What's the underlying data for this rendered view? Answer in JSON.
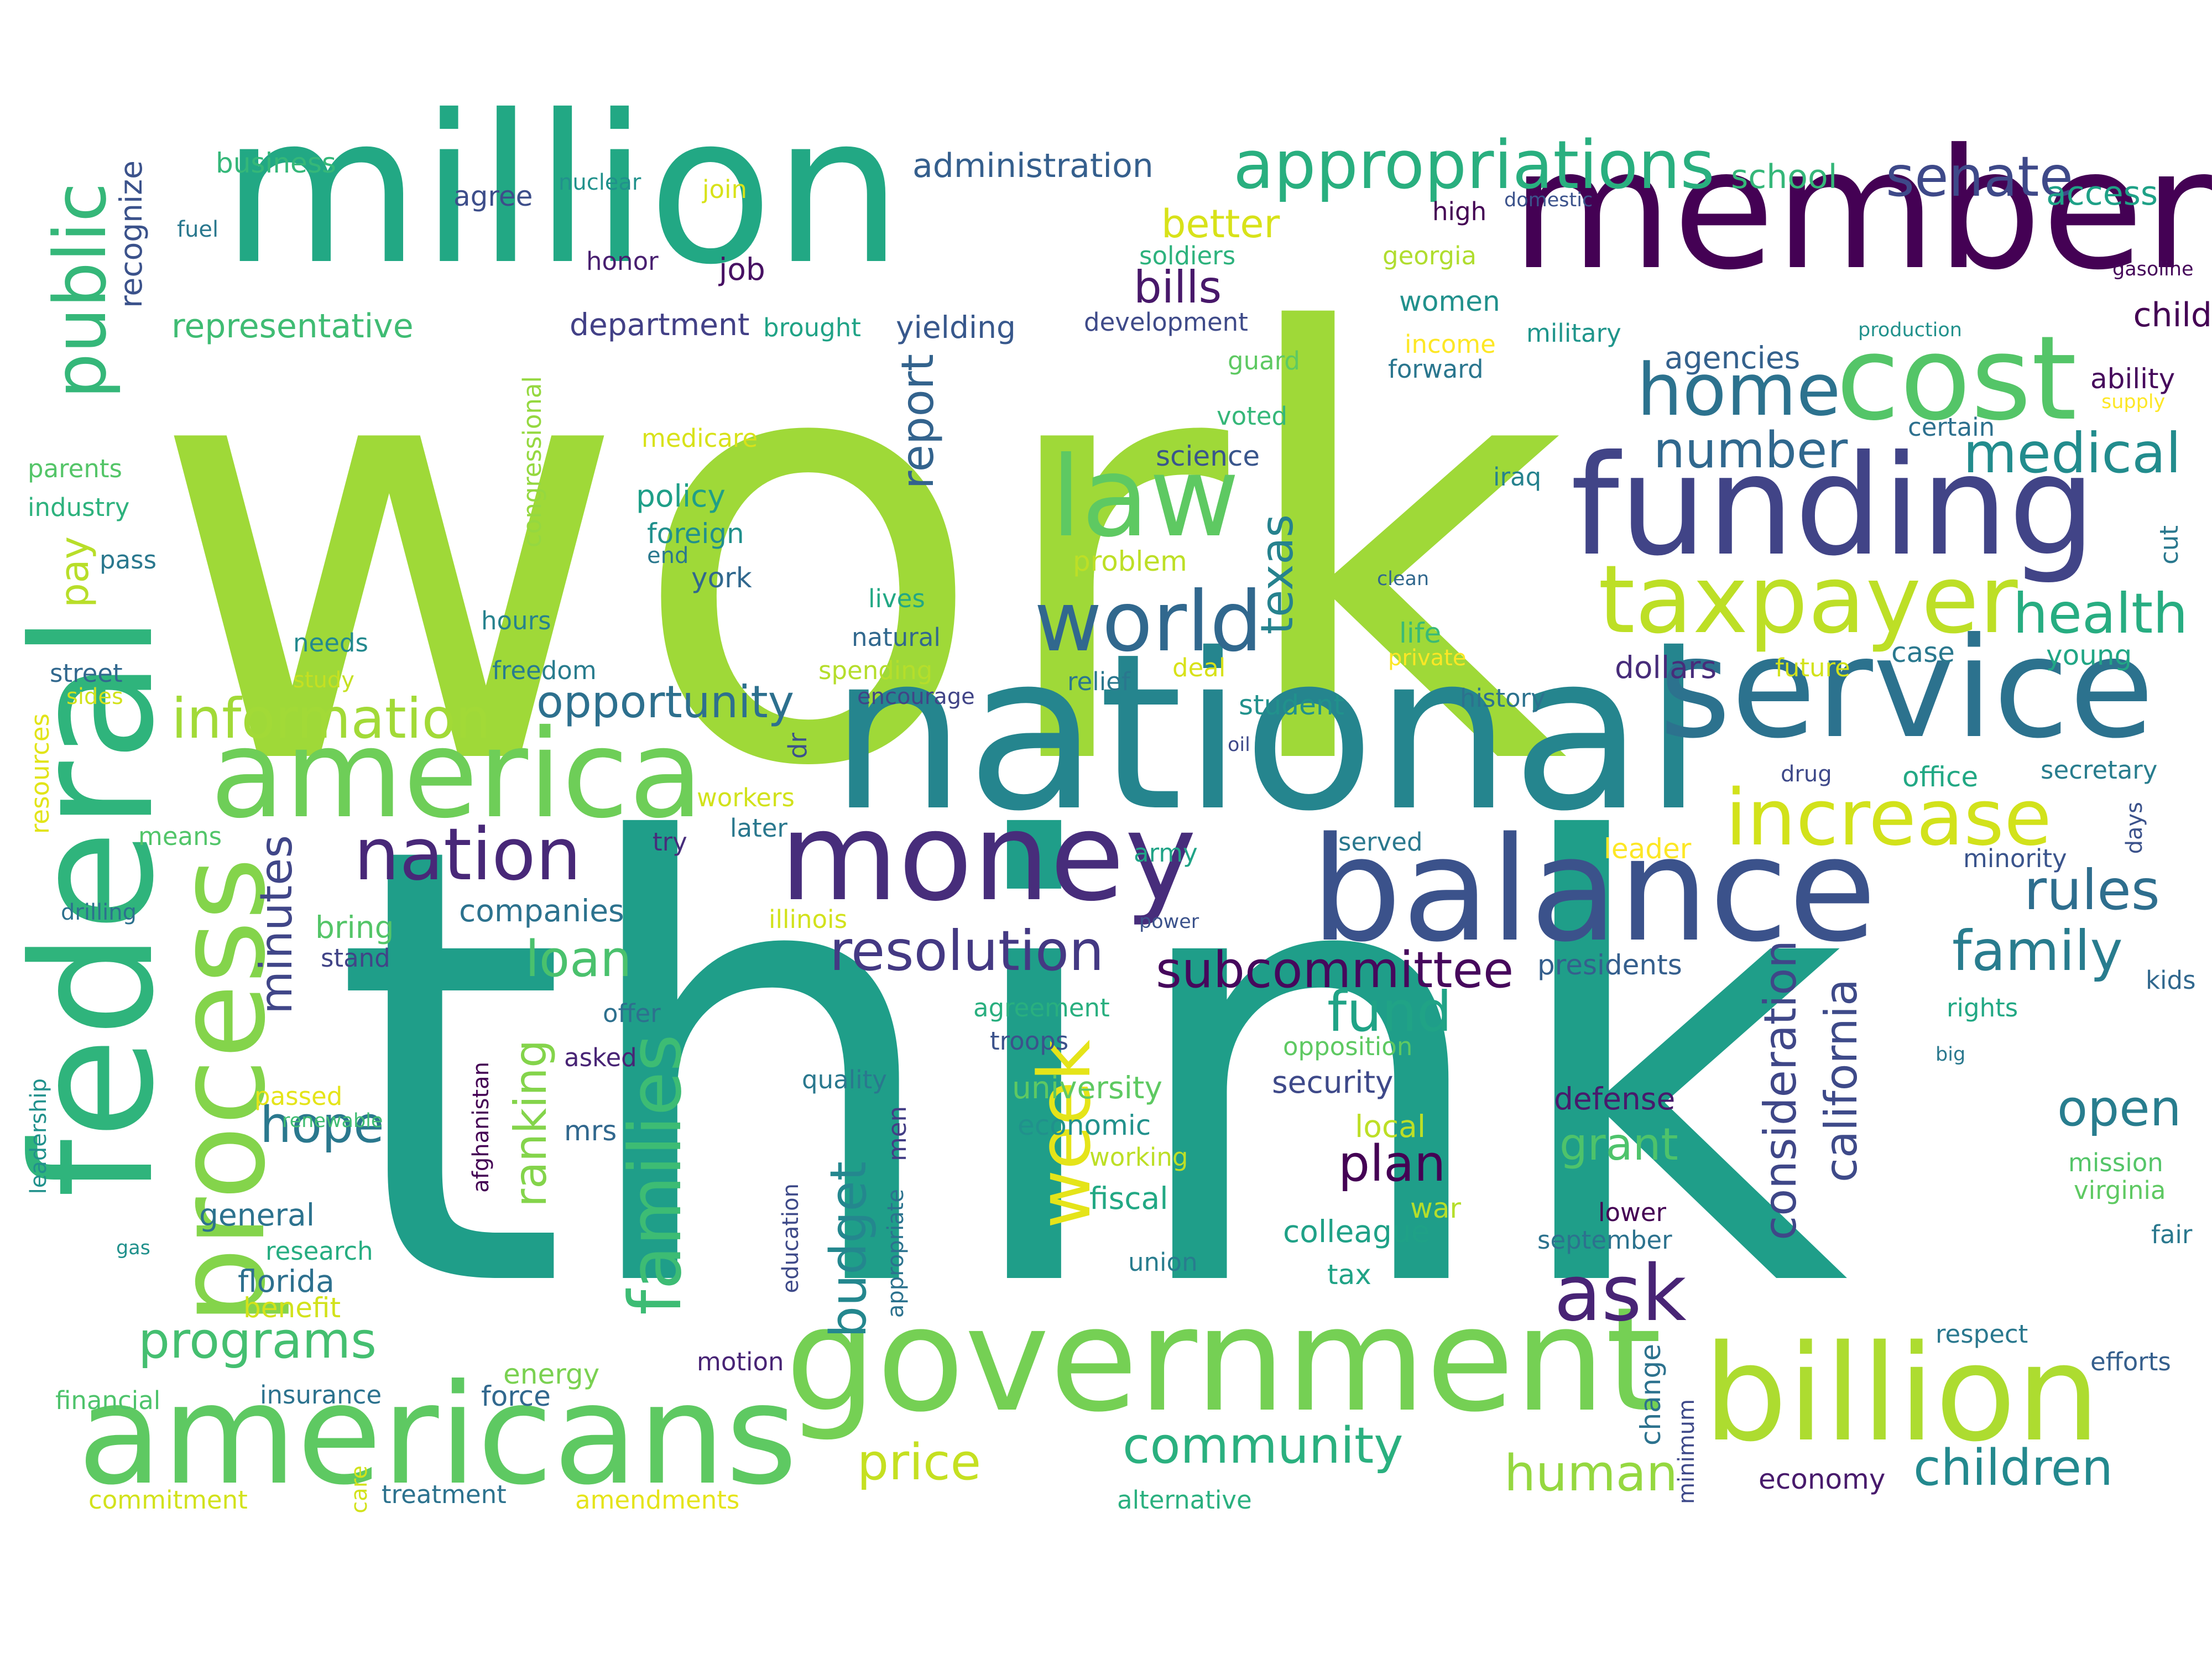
{
  "palette": [
    "#440154",
    "#472d7b",
    "#3b528b",
    "#2c728e",
    "#21918c",
    "#28ae80",
    "#5ec962",
    "#addc30",
    "#fde725"
  ],
  "words": [
    {
      "text": "work",
      "color": "#9fd938"
    },
    {
      "text": "think",
      "color": "#1f9e89"
    },
    {
      "text": "national",
      "color": "#25858e"
    },
    {
      "text": "million",
      "color": "#22a884"
    },
    {
      "text": "member",
      "color": "#440154"
    },
    {
      "text": "federal",
      "color": "#2fb47c"
    },
    {
      "text": "service",
      "color": "#2c728e"
    },
    {
      "text": "balance",
      "color": "#3b528b"
    },
    {
      "text": "government",
      "color": "#75d054"
    },
    {
      "text": "americans",
      "color": "#5ec962"
    },
    {
      "text": "funding",
      "color": "#414487"
    },
    {
      "text": "billion",
      "color": "#addc30"
    },
    {
      "text": "money",
      "color": "#472d7b"
    },
    {
      "text": "america",
      "color": "#6ece58"
    },
    {
      "text": "cost",
      "color": "#54c568"
    },
    {
      "text": "process",
      "color": "#84d44b"
    },
    {
      "text": "law",
      "color": "#5ec962"
    },
    {
      "text": "world",
      "color": "#31688e"
    },
    {
      "text": "taxpayer",
      "color": "#bddf26"
    },
    {
      "text": "appropriations",
      "color": "#29af7f"
    },
    {
      "text": "increase",
      "color": "#d2e21b"
    },
    {
      "text": "nation",
      "color": "#482878"
    },
    {
      "text": "public",
      "color": "#35b779"
    },
    {
      "text": "families",
      "color": "#3dbc74"
    },
    {
      "text": "home",
      "color": "#2c728e"
    },
    {
      "text": "senate",
      "color": "#3e4989"
    },
    {
      "text": "week",
      "color": "#e5e419"
    },
    {
      "text": "ask",
      "color": "#482475"
    },
    {
      "text": "resolution",
      "color": "#443983"
    },
    {
      "text": "subcommittee",
      "color": "#46085c"
    },
    {
      "text": "health",
      "color": "#27ad81"
    },
    {
      "text": "medical",
      "color": "#228c8d"
    },
    {
      "text": "number",
      "color": "#30688e"
    },
    {
      "text": "rules",
      "color": "#2e6e8e"
    },
    {
      "text": "family",
      "color": "#287c8e"
    },
    {
      "text": "information",
      "color": "#a2da37"
    },
    {
      "text": "opportunity",
      "color": "#2d708e"
    },
    {
      "text": "programs",
      "color": "#44bf70"
    },
    {
      "text": "community",
      "color": "#2ab07f"
    },
    {
      "text": "children",
      "color": "#23898e"
    },
    {
      "text": "human",
      "color": "#95d840"
    },
    {
      "text": "price",
      "color": "#c5e021"
    },
    {
      "text": "plan",
      "color": "#440154"
    },
    {
      "text": "fund",
      "color": "#20a386"
    },
    {
      "text": "loan",
      "color": "#4ac16d"
    },
    {
      "text": "hope",
      "color": "#2a788e"
    },
    {
      "text": "budget",
      "color": "#24878e"
    },
    {
      "text": "california",
      "color": "#3e4a89"
    },
    {
      "text": "consideration",
      "color": "#3f4788"
    },
    {
      "text": "ranking",
      "color": "#84d44b"
    },
    {
      "text": "minutes",
      "color": "#404688"
    },
    {
      "text": "report",
      "color": "#33638d"
    },
    {
      "text": "texas",
      "color": "#26828e"
    },
    {
      "text": "bills",
      "color": "#48186a"
    },
    {
      "text": "better",
      "color": "#d8e219"
    },
    {
      "text": "open",
      "color": "#287d8e"
    },
    {
      "text": "grant",
      "color": "#4ec36b"
    },
    {
      "text": "pay",
      "color": "#b8de29"
    },
    {
      "text": "representative",
      "color": "#3fbc73"
    },
    {
      "text": "business",
      "color": "#35b779"
    },
    {
      "text": "administration",
      "color": "#355f8d"
    },
    {
      "text": "school",
      "color": "#35b779"
    },
    {
      "text": "access",
      "color": "#1fa187"
    },
    {
      "text": "child",
      "color": "#440154"
    },
    {
      "text": "ability",
      "color": "#46085c"
    },
    {
      "text": "gasoline",
      "color": "#46075a"
    },
    {
      "text": "supply",
      "color": "#fde725"
    },
    {
      "text": "production",
      "color": "#21918c"
    },
    {
      "text": "certain",
      "color": "#2d708e"
    },
    {
      "text": "agencies",
      "color": "#34618d"
    },
    {
      "text": "forward",
      "color": "#2a768e"
    },
    {
      "text": "military",
      "color": "#1f958b"
    },
    {
      "text": "income",
      "color": "#fde725"
    },
    {
      "text": "women",
      "color": "#21918c"
    },
    {
      "text": "georgia",
      "color": "#b0dd2f"
    },
    {
      "text": "high",
      "color": "#440154"
    },
    {
      "text": "domestic",
      "color": "#3b528b"
    },
    {
      "text": "soldiers",
      "color": "#2db27d"
    },
    {
      "text": "development",
      "color": "#3e4a89"
    },
    {
      "text": "guard",
      "color": "#5ec962"
    },
    {
      "text": "voted",
      "color": "#35b779"
    },
    {
      "text": "yielding",
      "color": "#38588c"
    },
    {
      "text": "department",
      "color": "#424086"
    },
    {
      "text": "brought",
      "color": "#20a386"
    },
    {
      "text": "job",
      "color": "#471063"
    },
    {
      "text": "honor",
      "color": "#481f70"
    },
    {
      "text": "join",
      "color": "#d8e219"
    },
    {
      "text": "nuclear",
      "color": "#21918c"
    },
    {
      "text": "agree",
      "color": "#3d4e8a"
    },
    {
      "text": "recognize",
      "color": "#3b528b"
    },
    {
      "text": "fuel",
      "color": "#2a788e"
    },
    {
      "text": "parents",
      "color": "#54c568"
    },
    {
      "text": "industry",
      "color": "#2db27d"
    },
    {
      "text": "pass",
      "color": "#2a788e"
    },
    {
      "text": "street",
      "color": "#31688e"
    },
    {
      "text": "sides",
      "color": "#d2e21b"
    },
    {
      "text": "resources",
      "color": "#e2e418"
    },
    {
      "text": "means",
      "color": "#52c569"
    },
    {
      "text": "drilling",
      "color": "#2c718e"
    },
    {
      "text": "congressional",
      "color": "#95d840"
    },
    {
      "text": "medicare",
      "color": "#d8e219"
    },
    {
      "text": "policy",
      "color": "#1f9f88"
    },
    {
      "text": "foreign",
      "color": "#21908d"
    },
    {
      "text": "end",
      "color": "#2a788e"
    },
    {
      "text": "york",
      "color": "#31688e"
    },
    {
      "text": "hours",
      "color": "#26828e"
    },
    {
      "text": "needs",
      "color": "#23898e"
    },
    {
      "text": "study",
      "color": "#c5e021"
    },
    {
      "text": "freedom",
      "color": "#287c8e"
    },
    {
      "text": "lives",
      "color": "#22a884"
    },
    {
      "text": "natural",
      "color": "#31688e"
    },
    {
      "text": "spending",
      "color": "#b5de2b"
    },
    {
      "text": "encourage",
      "color": "#414487"
    },
    {
      "text": "relief",
      "color": "#2a778e"
    },
    {
      "text": "deal",
      "color": "#d8e219"
    },
    {
      "text": "problem",
      "color": "#bddf26"
    },
    {
      "text": "science",
      "color": "#39568c"
    },
    {
      "text": "student",
      "color": "#21918c"
    },
    {
      "text": "oil",
      "color": "#3e4989"
    },
    {
      "text": "clean",
      "color": "#31688e"
    },
    {
      "text": "iraq",
      "color": "#26828e"
    },
    {
      "text": "life",
      "color": "#3aba76"
    },
    {
      "text": "private",
      "color": "#fde725"
    },
    {
      "text": "dollars",
      "color": "#472c7a"
    },
    {
      "text": "future",
      "color": "#d2e21b"
    },
    {
      "text": "case",
      "color": "#2a788e"
    },
    {
      "text": "young",
      "color": "#21a685"
    },
    {
      "text": "history",
      "color": "#2c728e"
    },
    {
      "text": "cut",
      "color": "#2a788e"
    },
    {
      "text": "office",
      "color": "#22a884"
    },
    {
      "text": "drug",
      "color": "#3e4989"
    },
    {
      "text": "secretary",
      "color": "#287d8e"
    },
    {
      "text": "days",
      "color": "#3b528b"
    },
    {
      "text": "minority",
      "color": "#3a548c"
    },
    {
      "text": "leader",
      "color": "#fde725"
    },
    {
      "text": "served",
      "color": "#2a788e"
    },
    {
      "text": "army",
      "color": "#20a386"
    },
    {
      "text": "power",
      "color": "#3b528b"
    },
    {
      "text": "illinois",
      "color": "#d2e21b"
    },
    {
      "text": "later",
      "color": "#2a788e"
    },
    {
      "text": "workers",
      "color": "#d2e21b"
    },
    {
      "text": "dr",
      "color": "#3b528b"
    },
    {
      "text": "try",
      "color": "#472d7b"
    },
    {
      "text": "companies",
      "color": "#2c728e"
    },
    {
      "text": "bring",
      "color": "#54c568"
    },
    {
      "text": "stand",
      "color": "#414487"
    },
    {
      "text": "offer",
      "color": "#2d708e"
    },
    {
      "text": "asked",
      "color": "#482475"
    },
    {
      "text": "presidents",
      "color": "#355f8d"
    },
    {
      "text": "kids",
      "color": "#31688e"
    },
    {
      "text": "rights",
      "color": "#22a884"
    },
    {
      "text": "big",
      "color": "#2a788e"
    },
    {
      "text": "agreement",
      "color": "#29af7f"
    },
    {
      "text": "troops",
      "color": "#3b528b"
    },
    {
      "text": "opposition",
      "color": "#5ec962"
    },
    {
      "text": "quality",
      "color": "#2a788e"
    },
    {
      "text": "university",
      "color": "#5ec962"
    },
    {
      "text": "economic",
      "color": "#21918c"
    },
    {
      "text": "working",
      "color": "#bddf26"
    },
    {
      "text": "security",
      "color": "#3e4989"
    },
    {
      "text": "defense",
      "color": "#481a6c"
    },
    {
      "text": "local",
      "color": "#bddf26"
    },
    {
      "text": "mission",
      "color": "#54c568"
    },
    {
      "text": "virginia",
      "color": "#5ec962"
    },
    {
      "text": "fair",
      "color": "#2a788e"
    },
    {
      "text": "lower",
      "color": "#440154"
    },
    {
      "text": "september",
      "color": "#2c728e"
    },
    {
      "text": "war",
      "color": "#b5de2b"
    },
    {
      "text": "fiscal",
      "color": "#22a884"
    },
    {
      "text": "colleague",
      "color": "#1fa187"
    },
    {
      "text": "union",
      "color": "#287c8e"
    },
    {
      "text": "tax",
      "color": "#20a386"
    },
    {
      "text": "men",
      "color": "#433e85"
    },
    {
      "text": "appropriate",
      "color": "#2c728e"
    },
    {
      "text": "education",
      "color": "#3e4a89"
    },
    {
      "text": "afghanistan",
      "color": "#440154"
    },
    {
      "text": "mrs",
      "color": "#31688e"
    },
    {
      "text": "general",
      "color": "#2c728e"
    },
    {
      "text": "research",
      "color": "#26ad81"
    },
    {
      "text": "florida",
      "color": "#2d708e"
    },
    {
      "text": "benefit",
      "color": "#d2e21b"
    },
    {
      "text": "passed",
      "color": "#e5e419"
    },
    {
      "text": "renewable",
      "color": "#40bd72"
    },
    {
      "text": "leadership",
      "color": "#21918c"
    },
    {
      "text": "gas",
      "color": "#21918c"
    },
    {
      "text": "respect",
      "color": "#2a788e"
    },
    {
      "text": "efforts",
      "color": "#355f8d"
    },
    {
      "text": "change",
      "color": "#2c728e"
    },
    {
      "text": "minimum",
      "color": "#3e4989"
    },
    {
      "text": "motion",
      "color": "#482475"
    },
    {
      "text": "energy",
      "color": "#7ad151"
    },
    {
      "text": "force",
      "color": "#31688e"
    },
    {
      "text": "insurance",
      "color": "#2c728e"
    },
    {
      "text": "financial",
      "color": "#4ec36b"
    },
    {
      "text": "commitment",
      "color": "#d2e21b"
    },
    {
      "text": "care",
      "color": "#d2e21b"
    },
    {
      "text": "treatment",
      "color": "#2c728e"
    },
    {
      "text": "amendments",
      "color": "#e5e419"
    },
    {
      "text": "alternative",
      "color": "#2ab07f"
    },
    {
      "text": "economy",
      "color": "#481a6c"
    }
  ]
}
